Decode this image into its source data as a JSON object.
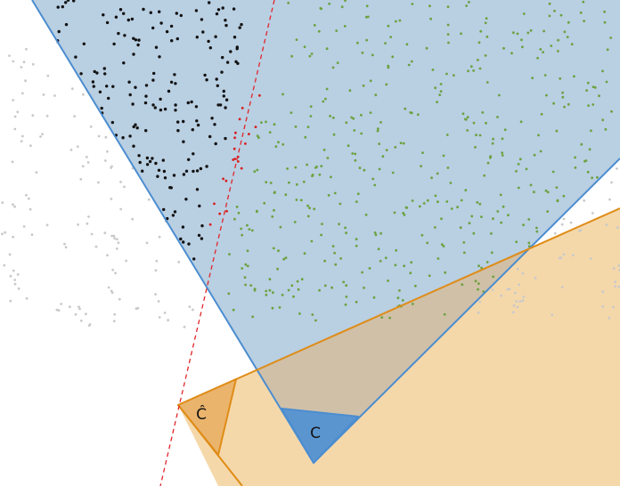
{
  "labels": {
    "c_hat": "Ĉ",
    "c": "C"
  },
  "colors": {
    "blue_fill": "#b9cfe2",
    "blue_edge": "#4b8dd0",
    "orange_fill": "#f5d8aa",
    "orange_edge": "#df8c17",
    "overlap": "#d0c0a8",
    "c_hat_fill": "#eab46d",
    "c_fill": "#5b95d0",
    "red_line": "#e0262a",
    "black_pts": "#111111",
    "red_pts": "#d81e1e",
    "green_pts": "#6ca23f",
    "grey_pts": "#c9c9c9"
  },
  "point_groups": [
    {
      "name": "black",
      "color": "#111111",
      "count": 170,
      "seed": 11
    },
    {
      "name": "red",
      "color": "#d81e1e",
      "count": 20,
      "seed": 23
    },
    {
      "name": "green",
      "color": "#6ca23f",
      "count": 430,
      "seed": 37
    },
    {
      "name": "grey",
      "color": "#c9c9c9",
      "count": 170,
      "seed": 51
    }
  ]
}
